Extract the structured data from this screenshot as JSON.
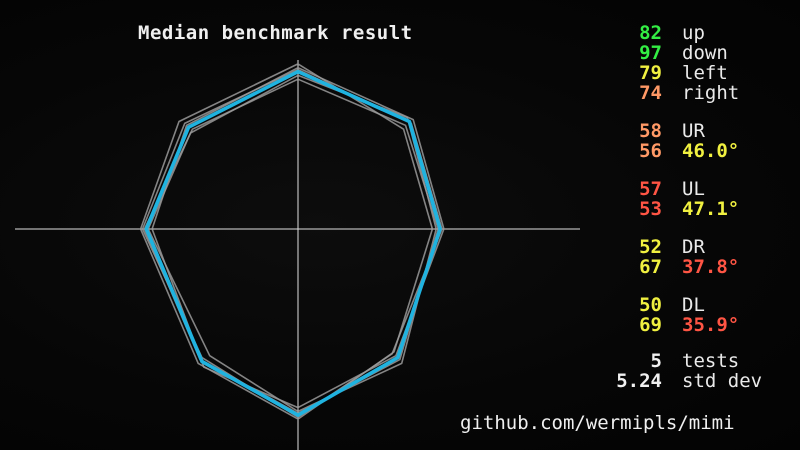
{
  "title": "Median benchmark result",
  "footer": "github.com/wermipls/mimi",
  "colors": {
    "background": "#050505",
    "median": "#1fb3e0",
    "tests": "#9a9a9a",
    "axes": "#e0e0e0",
    "green": "#33ee44",
    "yellow": "#f0f040",
    "orange": "#ff9966",
    "red": "#ff5544"
  },
  "directions": [
    {
      "value": "82",
      "label": "up",
      "color": "#33ee44"
    },
    {
      "value": "97",
      "label": "down",
      "color": "#33ee44"
    },
    {
      "value": "79",
      "label": "left",
      "color": "#f0f040"
    },
    {
      "value": "74",
      "label": "right",
      "color": "#ff9966"
    }
  ],
  "diagonals": [
    {
      "name": "UR",
      "name_value": "58",
      "name_value_color": "#ff9966",
      "angle_value": "56",
      "angle_value_color": "#ff9966",
      "angle": "46.0°",
      "angle_color": "#f0f040"
    },
    {
      "name": "UL",
      "name_value": "57",
      "name_value_color": "#ff5544",
      "angle_value": "53",
      "angle_value_color": "#ff5544",
      "angle": "47.1°",
      "angle_color": "#f0f040"
    },
    {
      "name": "DR",
      "name_value": "52",
      "name_value_color": "#f0f040",
      "angle_value": "67",
      "angle_value_color": "#f0f040",
      "angle": "37.8°",
      "angle_color": "#ff5544"
    },
    {
      "name": "DL",
      "name_value": "50",
      "name_value_color": "#f0f040",
      "angle_value": "69",
      "angle_value_color": "#f0f040",
      "angle": "35.9°",
      "angle_color": "#ff5544"
    }
  ],
  "summary": {
    "tests_value": "5",
    "tests_label": "tests",
    "stddev_value": "5.24",
    "stddev_label": "std dev"
  },
  "chart_data": {
    "type": "radar",
    "order": [
      "right",
      "up-right",
      "up",
      "up-left",
      "left",
      "down-left",
      "down",
      "down-right"
    ],
    "median": [
      [
        74,
        0
      ],
      [
        58,
        56
      ],
      [
        0,
        82
      ],
      [
        -57,
        53
      ],
      [
        -79,
        0
      ],
      [
        -50,
        -69
      ],
      [
        0,
        -97
      ],
      [
        52,
        -67
      ]
    ],
    "tests": [
      [
        [
          70,
          0
        ],
        [
          55,
          52
        ],
        [
          0,
          86
        ],
        [
          -62,
          56
        ],
        [
          -82,
          0
        ],
        [
          -52,
          -70
        ],
        [
          0,
          -99
        ],
        [
          50,
          -64
        ]
      ],
      [
        [
          72,
          0
        ],
        [
          57,
          58
        ],
        [
          0,
          80
        ],
        [
          -56,
          50
        ],
        [
          -78,
          0
        ],
        [
          -46,
          -66
        ],
        [
          0,
          -95
        ],
        [
          54,
          -70
        ]
      ],
      [
        [
          76,
          0
        ],
        [
          60,
          57
        ],
        [
          0,
          84
        ],
        [
          -58,
          54
        ],
        [
          -76,
          0
        ],
        [
          -49,
          -72
        ],
        [
          0,
          -93
        ],
        [
          51,
          -66
        ]
      ],
      [
        [
          73,
          0
        ],
        [
          56,
          54
        ],
        [
          0,
          78
        ],
        [
          -55,
          52
        ],
        [
          -80,
          0
        ],
        [
          -51,
          -68
        ],
        [
          0,
          -96
        ],
        [
          53,
          -68
        ]
      ],
      [
        [
          75,
          0
        ],
        [
          59,
          55
        ],
        [
          0,
          83
        ],
        [
          -59,
          55
        ],
        [
          -81,
          0
        ],
        [
          -50,
          -67
        ],
        [
          0,
          -98
        ],
        [
          49,
          -65
        ]
      ]
    ]
  }
}
